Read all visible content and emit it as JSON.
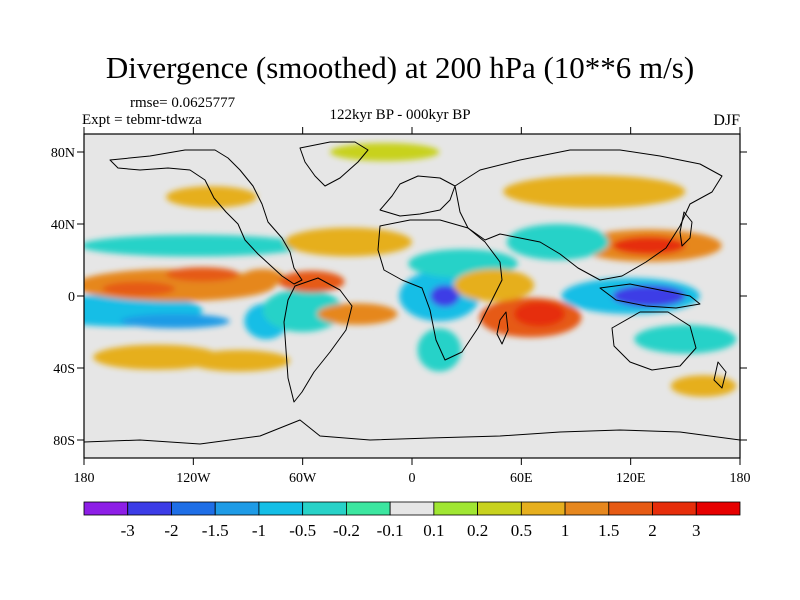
{
  "chart_data": {
    "type": "heatmap",
    "title": "Divergence (smoothed) at 200 hPa (10**6 m/s)",
    "rmse_text": "rmse= 0.0625777",
    "experiment_text": "Expt = tebmr-tdwza",
    "center_subtitle": "122kyr BP - 000kyr BP",
    "season": "DJF",
    "x_axis": {
      "range": [
        -180,
        180
      ],
      "ticks": [
        -180,
        -120,
        -60,
        0,
        60,
        120,
        180
      ],
      "tick_labels": [
        "180",
        "120W",
        "60W",
        "0",
        "60E",
        "120E",
        "180"
      ]
    },
    "y_axis": {
      "range": [
        -90,
        90
      ],
      "ticks": [
        80,
        40,
        0,
        -40,
        -80
      ],
      "tick_labels": [
        "80N",
        "40N",
        "0",
        "40S",
        "80S"
      ]
    },
    "colorbar": {
      "levels": [
        -3,
        -2,
        -1.5,
        -1,
        -0.5,
        -0.2,
        -0.1,
        0.1,
        0.2,
        0.5,
        1,
        1.5,
        2,
        3
      ],
      "labels": [
        "-3",
        "-2",
        "-1.5",
        "-1",
        "-0.5",
        "-0.2",
        "-0.1",
        "0.1",
        "0.2",
        "0.5",
        "1",
        "1.5",
        "2",
        "3"
      ],
      "colors": [
        "#8d1ee6",
        "#3c3ce6",
        "#1e6ee6",
        "#1e9be6",
        "#14bee6",
        "#28d2c8",
        "#3ce6a0",
        "#e6e6e6",
        "#a0e632",
        "#c8d21e",
        "#e6af1e",
        "#e6871e",
        "#e65a14",
        "#e62d0a",
        "#e60000"
      ]
    },
    "fields": [
      {
        "lon": -155,
        "lat": -8,
        "rlon": 22,
        "rlat": 6,
        "value": -3
      },
      {
        "lon": -160,
        "lat": -8,
        "rlon": 45,
        "rlat": 9,
        "value": -1
      },
      {
        "lon": -130,
        "lat": -14,
        "rlon": 30,
        "rlat": 4,
        "value": -1.5
      },
      {
        "lon": -120,
        "lat": 28,
        "rlon": 62,
        "rlat": 6,
        "value": -0.5
      },
      {
        "lon": -130,
        "lat": 6,
        "rlon": 55,
        "rlat": 9,
        "value": 1
      },
      {
        "lon": -150,
        "lat": 4,
        "rlon": 20,
        "rlat": 4,
        "value": 1.5
      },
      {
        "lon": -115,
        "lat": 12,
        "rlon": 20,
        "rlat": 4,
        "value": 1.5
      },
      {
        "lon": -140,
        "lat": -34,
        "rlon": 35,
        "rlat": 7,
        "value": 0.5
      },
      {
        "lon": -95,
        "lat": -36,
        "rlon": 28,
        "rlat": 6,
        "value": 0.5
      },
      {
        "lon": -80,
        "lat": -14,
        "rlon": 12,
        "rlat": 10,
        "value": -1
      },
      {
        "lon": -60,
        "lat": -8,
        "rlon": 22,
        "rlat": 12,
        "value": -0.5
      },
      {
        "lon": -82,
        "lat": 10,
        "rlon": 12,
        "rlat": 5,
        "value": 1
      },
      {
        "lon": -30,
        "lat": -10,
        "rlon": 22,
        "rlat": 6,
        "value": 1
      },
      {
        "lon": -55,
        "lat": 8,
        "rlon": 18,
        "rlat": 6,
        "value": 1.5
      },
      {
        "lon": -35,
        "lat": 30,
        "rlon": 35,
        "rlat": 8,
        "value": 0.5
      },
      {
        "lon": 15,
        "lat": 0,
        "rlon": 22,
        "rlat": 14,
        "value": -1
      },
      {
        "lon": 18,
        "lat": 0,
        "rlon": 8,
        "rlat": 6,
        "value": -3
      },
      {
        "lon": 28,
        "lat": 18,
        "rlon": 30,
        "rlat": 8,
        "value": -0.5
      },
      {
        "lon": 15,
        "lat": -30,
        "rlon": 12,
        "rlat": 12,
        "value": -0.5
      },
      {
        "lon": 65,
        "lat": -12,
        "rlon": 28,
        "rlat": 11,
        "value": 1.5
      },
      {
        "lon": 70,
        "lat": -10,
        "rlon": 14,
        "rlat": 7,
        "value": 2
      },
      {
        "lon": 45,
        "lat": 6,
        "rlon": 22,
        "rlat": 9,
        "value": 0.5
      },
      {
        "lon": 120,
        "lat": 0,
        "rlon": 38,
        "rlat": 10,
        "value": -1
      },
      {
        "lon": 130,
        "lat": 0,
        "rlon": 20,
        "rlat": 6,
        "value": -3
      },
      {
        "lon": 150,
        "lat": -24,
        "rlon": 28,
        "rlat": 8,
        "value": -0.5
      },
      {
        "lon": 130,
        "lat": 28,
        "rlon": 40,
        "rlat": 9,
        "value": 1
      },
      {
        "lon": 130,
        "lat": 28,
        "rlon": 20,
        "rlat": 5,
        "value": 2
      },
      {
        "lon": 80,
        "lat": 30,
        "rlon": 28,
        "rlat": 10,
        "value": -0.5
      },
      {
        "lon": -15,
        "lat": 80,
        "rlon": 30,
        "rlat": 5,
        "value": 0.2
      },
      {
        "lon": -110,
        "lat": 55,
        "rlon": 25,
        "rlat": 6,
        "value": 0.5
      },
      {
        "lon": 100,
        "lat": 58,
        "rlon": 50,
        "rlat": 9,
        "value": 0.5
      },
      {
        "lon": 160,
        "lat": -50,
        "rlon": 18,
        "rlat": 6,
        "value": 0.5
      }
    ]
  }
}
